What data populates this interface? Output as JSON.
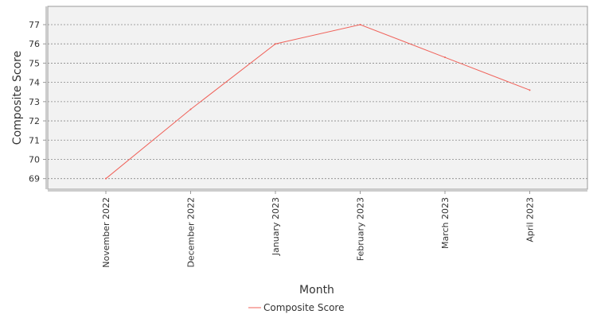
{
  "chart_data": {
    "type": "line",
    "categories": [
      "November 2022",
      "December 2022",
      "January 2023",
      "February 2023",
      "March 2023",
      "April 2023"
    ],
    "series": [
      {
        "name": "Composite Score",
        "values": [
          69.0,
          72.6,
          76.0,
          77.0,
          75.3,
          73.6
        ],
        "color": "#f0625a"
      }
    ],
    "xlabel": "Month",
    "ylabel": "Composite Score",
    "ylim": [
      68.45,
      77.95
    ],
    "yticks": [
      69,
      70,
      71,
      72,
      73,
      74,
      75,
      76,
      77
    ],
    "grid": true,
    "legend_position": "bottom-center",
    "plot_background": "#f2f2f2",
    "grid_color": "#888888"
  }
}
